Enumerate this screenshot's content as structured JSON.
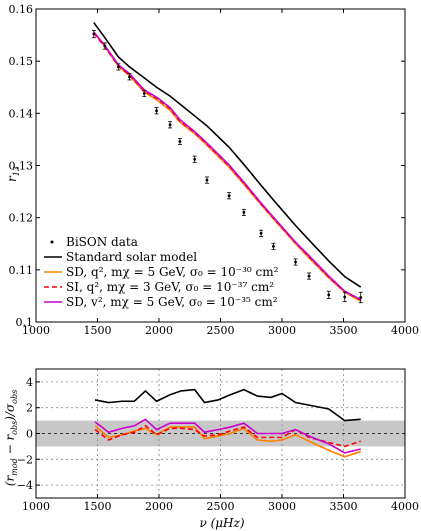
{
  "chart_data": [
    {
      "type": "line",
      "ylabel": "r13",
      "xlim": [
        1000,
        4000
      ],
      "ylim": [
        0.1,
        0.16
      ],
      "xticks": [
        "1000",
        "1500",
        "2000",
        "2500",
        "3000",
        "3500",
        "4000"
      ],
      "yticks": [
        "0.1",
        "0.11",
        "0.12",
        "0.13",
        "0.14",
        "0.15",
        "0.16"
      ],
      "grid": false,
      "legend": {
        "placement": "bottom-left",
        "entries": [
          {
            "label": "BiSON data"
          },
          {
            "label": "Standard solar model"
          },
          {
            "label": "SD, q², mχ = 5 GeV, σ₀ = 10⁻³⁰ cm²"
          },
          {
            "label": "SI, q², mχ = 3 GeV, σ₀ = 10⁻³⁷ cm²"
          },
          {
            "label": "SD, v², mχ = 5 GeV, σ₀ = 10⁻³⁵ cm²"
          }
        ]
      },
      "x": [
        1470,
        1560,
        1670,
        1760,
        1880,
        1980,
        2090,
        2170,
        2290,
        2390,
        2570,
        2690,
        2830,
        2930,
        3110,
        3220,
        3380,
        3510,
        3640
      ],
      "series": [
        {
          "name": "BiSON data",
          "color": "#000000",
          "style": "points",
          "values": [
            0.1552,
            0.1529,
            0.1489,
            0.147,
            0.1438,
            0.1405,
            0.1378,
            0.1346,
            0.1312,
            0.1272,
            0.1242,
            0.121,
            0.117,
            0.1145,
            0.1115,
            0.1088,
            0.1052,
            0.1048,
            0.1047
          ],
          "errors": [
            0.0007,
            0.0006,
            0.0006,
            0.0006,
            0.0006,
            0.0006,
            0.0006,
            0.0006,
            0.0006,
            0.0006,
            0.0006,
            0.0006,
            0.0006,
            0.0006,
            0.0006,
            0.0006,
            0.0007,
            0.0009,
            0.001
          ]
        },
        {
          "name": "Standard solar model",
          "color": "#000000",
          "style": "solid",
          "values": [
            0.1574,
            0.1545,
            0.1508,
            0.1489,
            0.1468,
            0.145,
            0.1433,
            0.1418,
            0.1395,
            0.1376,
            0.1335,
            0.1302,
            0.1262,
            0.1234,
            0.1185,
            0.1157,
            0.1117,
            0.1087,
            0.1067
          ]
        },
        {
          "name": "SD, q², mχ = 5 GeV, σ₀ = 10⁻³⁰ cm²",
          "color": "#ff8000",
          "style": "solid",
          "values": [
            0.1556,
            0.1528,
            0.149,
            0.1472,
            0.1441,
            0.1426,
            0.1406,
            0.1383,
            0.1361,
            0.1339,
            0.1297,
            0.1264,
            0.1225,
            0.1198,
            0.115,
            0.1123,
            0.1085,
            0.1057,
            0.104
          ]
        },
        {
          "name": "SI, q², mχ = 3 GeV, σ₀ = 10⁻³⁷ cm²",
          "color": "#ff0000",
          "style": "dashed",
          "values": [
            0.1554,
            0.1527,
            0.1491,
            0.1474,
            0.1443,
            0.1429,
            0.1409,
            0.1385,
            0.1363,
            0.1341,
            0.1299,
            0.1266,
            0.1226,
            0.1199,
            0.1152,
            0.1125,
            0.1086,
            0.1058,
            0.1042
          ]
        },
        {
          "name": "SD, v², mχ = 5 GeV, σ₀ = 10⁻³⁵ cm²",
          "color": "#cc00cc",
          "style": "solid",
          "values": [
            0.1556,
            0.153,
            0.1493,
            0.1476,
            0.1445,
            0.1431,
            0.1411,
            0.1388,
            0.1365,
            0.1343,
            0.1301,
            0.1268,
            0.1228,
            0.1201,
            0.1153,
            0.1127,
            0.1088,
            0.1059,
            0.1043
          ]
        }
      ]
    },
    {
      "type": "line",
      "xlabel": "ν (μHz)",
      "ylabel": "(r_mod − r_obs)/σ_obs",
      "xlim": [
        1000,
        4000
      ],
      "ylim": [
        -5,
        5
      ],
      "xticks": [
        "1000",
        "1500",
        "2000",
        "2500",
        "3000",
        "3500",
        "4000"
      ],
      "yticks": [
        "−4",
        "−2",
        "0",
        "2",
        "4"
      ],
      "grid": true,
      "shaded_band": [
        -1,
        1
      ],
      "reference_line": 0,
      "x": [
        1480,
        1590,
        1700,
        1800,
        1890,
        1980,
        2090,
        2180,
        2290,
        2370,
        2480,
        2580,
        2690,
        2800,
        2910,
        3000,
        3110,
        3220,
        3380,
        3510,
        3640
      ],
      "series": [
        {
          "name": "Standard solar model",
          "color": "#000000",
          "style": "solid",
          "values": [
            2.6,
            2.4,
            2.5,
            2.5,
            3.3,
            2.5,
            3.0,
            3.3,
            3.4,
            2.4,
            2.6,
            3.0,
            3.4,
            2.9,
            2.8,
            3.1,
            2.4,
            2.2,
            1.9,
            1.0,
            1.1
          ]
        },
        {
          "name": "SD, q², mχ = 5 GeV, σ₀ = 10⁻³⁰ cm²",
          "color": "#ff8000",
          "style": "solid",
          "values": [
            0.6,
            -0.3,
            -0.1,
            0.2,
            0.4,
            -0.1,
            0.5,
            0.5,
            0.5,
            -0.4,
            -0.2,
            0.0,
            0.4,
            -0.5,
            -0.6,
            -0.5,
            -0.1,
            -0.6,
            -1.3,
            -1.8,
            -1.4
          ]
        },
        {
          "name": "SI, q², mχ = 3 GeV, σ₀ = 10⁻³⁷ cm²",
          "color": "#ff0000",
          "style": "dashed",
          "values": [
            0.3,
            -0.5,
            -0.1,
            0.1,
            0.6,
            -0.1,
            0.4,
            0.4,
            0.3,
            -0.2,
            -0.1,
            0.2,
            0.5,
            -0.3,
            -0.3,
            -0.3,
            0.3,
            -0.3,
            -0.7,
            -1.0,
            -0.6
          ]
        },
        {
          "name": "SD, v², mχ = 5 GeV, σ₀ = 10⁻³⁵ cm²",
          "color": "#cc00cc",
          "style": "solid",
          "values": [
            0.9,
            0.1,
            0.4,
            0.6,
            1.1,
            0.3,
            0.8,
            0.8,
            0.8,
            0.1,
            0.3,
            0.5,
            0.8,
            0.0,
            0.0,
            0.0,
            0.3,
            -0.2,
            -0.8,
            -1.5,
            -1.2
          ]
        }
      ]
    }
  ]
}
